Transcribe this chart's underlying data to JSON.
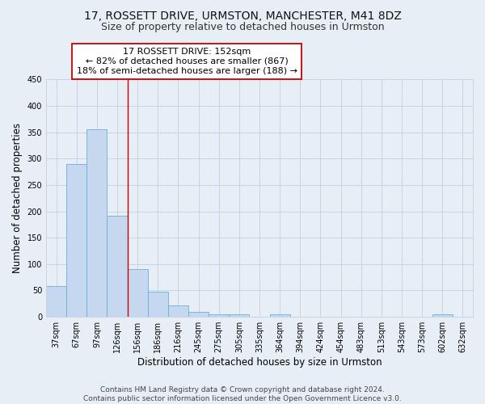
{
  "title1": "17, ROSSETT DRIVE, URMSTON, MANCHESTER, M41 8DZ",
  "title2": "Size of property relative to detached houses in Urmston",
  "xlabel": "Distribution of detached houses by size in Urmston",
  "ylabel": "Number of detached properties",
  "footnote": "Contains HM Land Registry data © Crown copyright and database right 2024.\nContains public sector information licensed under the Open Government Licence v3.0.",
  "bar_labels": [
    "37sqm",
    "67sqm",
    "97sqm",
    "126sqm",
    "156sqm",
    "186sqm",
    "216sqm",
    "245sqm",
    "275sqm",
    "305sqm",
    "335sqm",
    "364sqm",
    "394sqm",
    "424sqm",
    "454sqm",
    "483sqm",
    "513sqm",
    "543sqm",
    "573sqm",
    "602sqm",
    "632sqm"
  ],
  "bar_values": [
    58,
    290,
    355,
    192,
    90,
    47,
    21,
    9,
    5,
    5,
    0,
    5,
    0,
    0,
    0,
    0,
    0,
    0,
    0,
    5,
    0
  ],
  "bar_color": "#c5d8f0",
  "bar_edge_color": "#6baed6",
  "grid_color": "#c8d4e3",
  "background_color": "#e8eef5",
  "vline_x": 3.5,
  "vline_color": "#cc0000",
  "annotation_text": "17 ROSSETT DRIVE: 152sqm\n← 82% of detached houses are smaller (867)\n18% of semi-detached houses are larger (188) →",
  "annotation_box_color": "white",
  "annotation_box_edge": "#cc0000",
  "ylim": [
    0,
    450
  ],
  "title1_fontsize": 10,
  "title2_fontsize": 9,
  "xlabel_fontsize": 8.5,
  "ylabel_fontsize": 8.5,
  "tick_fontsize": 7,
  "annot_fontsize": 8,
  "footnote_fontsize": 6.5
}
